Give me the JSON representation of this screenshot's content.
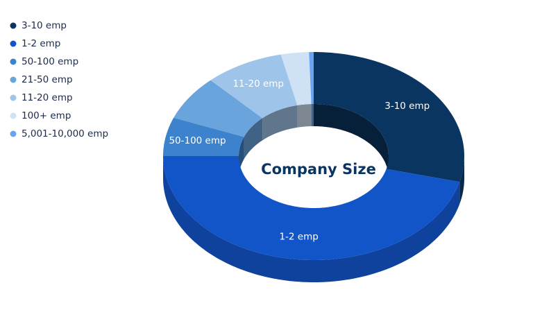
{
  "chart_data": {
    "type": "pie",
    "title": "Company Size",
    "categories": [
      "3-10 emp",
      "1-2 emp",
      "50-100 emp",
      "21-50 emp",
      "11-20 emp",
      "100+ emp",
      "5,001-10,000 emp"
    ],
    "values": [
      29,
      46,
      6,
      7,
      8.5,
      3,
      0.5
    ],
    "colors": [
      "#0b3561",
      "#1255c9",
      "#3d82cc",
      "#6aa4dc",
      "#9fc4e9",
      "#cfe1f4",
      "#6aa4f0"
    ],
    "legend": "top-left"
  }
}
